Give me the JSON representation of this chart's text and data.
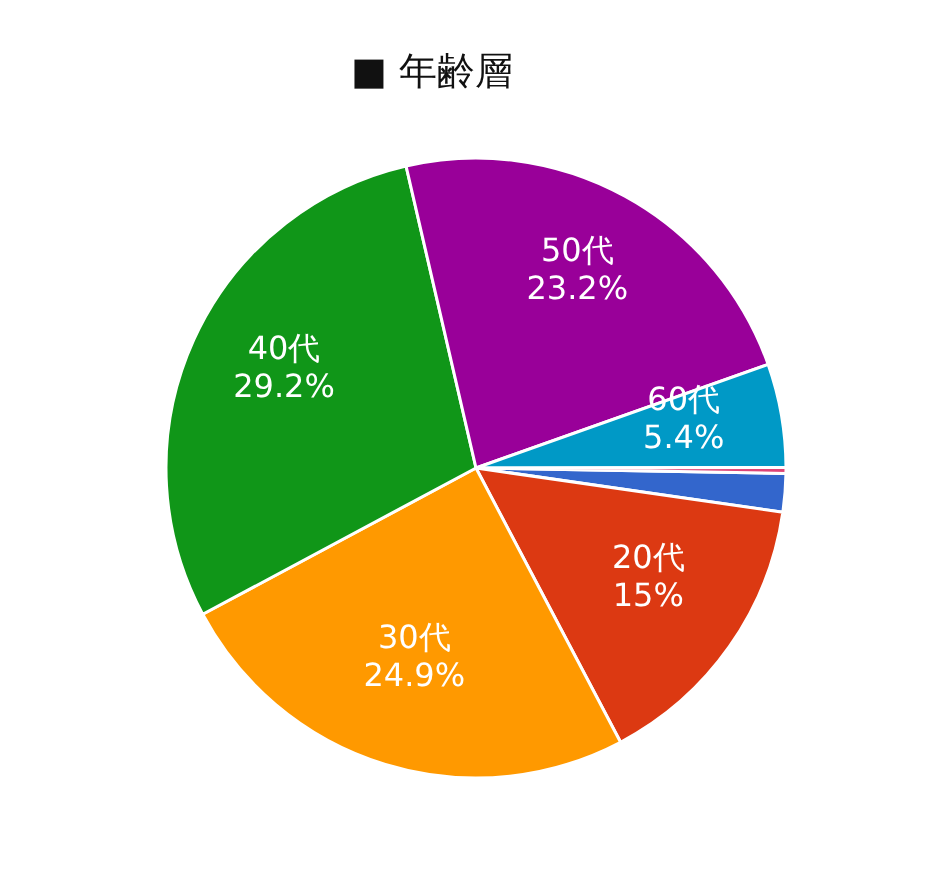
{
  "chart_data": {
    "type": "pie",
    "title": "■ 年齢層",
    "categories": [
      null,
      "20代",
      "30代",
      "40代",
      "50代",
      "60代",
      null
    ],
    "values": [
      2.0,
      15,
      24.9,
      29.2,
      23.2,
      5.4,
      0.3
    ],
    "colors": [
      "#3366cc",
      "#dc3912",
      "#ff9900",
      "#109618",
      "#990099",
      "#0099c6",
      "#dd4477"
    ],
    "value_labels": [
      null,
      "15%",
      "24.9%",
      "29.2%",
      "23.2%",
      "5.4%",
      null
    ]
  }
}
